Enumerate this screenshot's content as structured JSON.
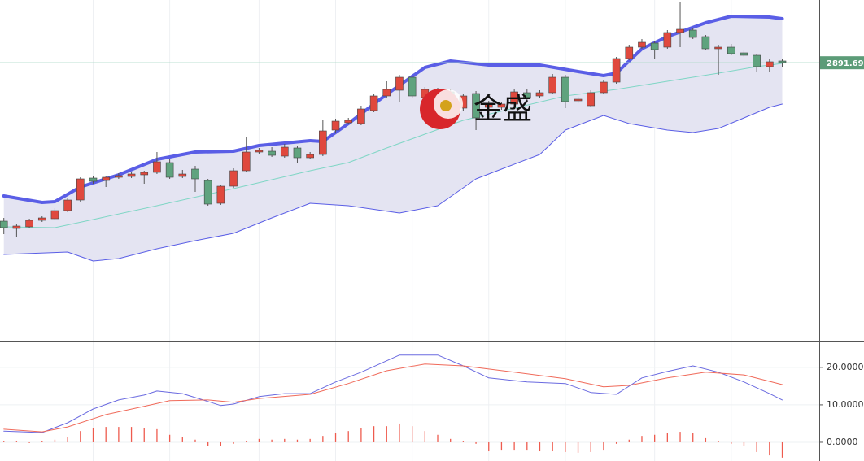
{
  "chart_data": [
    {
      "type": "candlestick",
      "xlim": [
        -0.3,
        63.9
      ],
      "ylim": [
        2686,
        2938
      ],
      "xticks": [
        7,
        13,
        20,
        26,
        32,
        38,
        44,
        51,
        57
      ],
      "up_color": "#e0493e",
      "down_color": "#5fa37e",
      "last_price": 2891.69,
      "last_price_color": "#5c9c78",
      "watermark": "金盛",
      "open": [
        2774.8,
        2769.4,
        2770.6,
        2775.4,
        2776.6,
        2782.6,
        2790.4,
        2806.6,
        2804.8,
        2807.2,
        2807.8,
        2809,
        2810.8,
        2818,
        2807.8,
        2813.2,
        2804.8,
        2788,
        2800.6,
        2812,
        2825.8,
        2826.4,
        2822.8,
        2828.8,
        2821.6,
        2824,
        2842,
        2847.4,
        2846.8,
        2856.4,
        2867.2,
        2871.4,
        2881,
        2866,
        2870.8,
        2870.2,
        2858.2,
        2869,
        2858.8,
        2858.8,
        2861.2,
        2869.6,
        2867.2,
        2869.6,
        2881,
        2863.6,
        2860,
        2869.6,
        2877.4,
        2894.8,
        2903.2,
        2906.2,
        2903.2,
        2914,
        2915.8,
        2911,
        2902,
        2903.2,
        2899,
        2897.2,
        2888.8,
        2893
      ],
      "high": [
        2777.2,
        2773,
        2776.6,
        2778.4,
        2784.4,
        2791.6,
        2807.2,
        2808.4,
        2808.4,
        2810.2,
        2811.4,
        2812,
        2825.8,
        2820.4,
        2812.6,
        2815.6,
        2806,
        2801.8,
        2813.8,
        2837.2,
        2828.8,
        2829.4,
        2831.8,
        2830.6,
        2825.8,
        2849.8,
        2850.4,
        2851,
        2860,
        2869,
        2878,
        2882.8,
        2882.2,
        2873.8,
        2873.2,
        2872,
        2869,
        2870.8,
        2863.6,
        2863,
        2872,
        2872,
        2871.4,
        2883.4,
        2882.8,
        2866.6,
        2871.4,
        2879.2,
        2896,
        2905,
        2909.2,
        2908,
        2915.8,
        2936.8,
        2917.6,
        2912.2,
        2905,
        2905.6,
        2900.8,
        2898.4,
        2894.2,
        2894.8
      ],
      "low": [
        2765.2,
        2762.8,
        2769.4,
        2774.2,
        2775.4,
        2781.4,
        2789.2,
        2802.4,
        2800,
        2806,
        2806.6,
        2802.4,
        2809.6,
        2806,
        2806.6,
        2796.4,
        2786.2,
        2786.8,
        2799.4,
        2810.8,
        2824.6,
        2822.2,
        2821.6,
        2818,
        2820.4,
        2822.8,
        2840.2,
        2846.2,
        2845.6,
        2855.2,
        2866,
        2862.4,
        2866,
        2864.8,
        2857.6,
        2859.4,
        2856.4,
        2842,
        2857,
        2857,
        2859.4,
        2863.6,
        2865.4,
        2868.4,
        2858.2,
        2861.8,
        2858.8,
        2868.4,
        2876.2,
        2893.6,
        2902,
        2894.8,
        2902,
        2903.2,
        2909.2,
        2900.8,
        2882.8,
        2897.2,
        2896,
        2885.2,
        2885.2,
        2888.8
      ],
      "close": [
        2770,
        2771.2,
        2775.4,
        2777.2,
        2782.6,
        2790.4,
        2806,
        2804.2,
        2807.2,
        2808.4,
        2809.6,
        2810.8,
        2818.6,
        2807.2,
        2809.6,
        2806,
        2787.4,
        2800.6,
        2812,
        2825.8,
        2827,
        2823.4,
        2829.4,
        2821.6,
        2824,
        2841.4,
        2848.6,
        2849.2,
        2857.6,
        2867.2,
        2872,
        2881,
        2867.2,
        2872,
        2859.4,
        2861.2,
        2867.2,
        2851,
        2861.8,
        2861.2,
        2870.2,
        2865.4,
        2869.6,
        2881,
        2863,
        2864.8,
        2869.6,
        2877.4,
        2894.8,
        2903.2,
        2906.8,
        2901.4,
        2914,
        2916.4,
        2910.4,
        2902,
        2903.2,
        2898.4,
        2897.2,
        2888.8,
        2892.4,
        2891.8
      ],
      "bands": [
        {
          "color": "#5a5ee6",
          "width": 4,
          "x": [
            0,
            3,
            4,
            6,
            9,
            12,
            15,
            18,
            20,
            22,
            24,
            25,
            27,
            30,
            33,
            35,
            38,
            42,
            45,
            47,
            48,
            50,
            52,
            55,
            57,
            60,
            61
          ],
          "values": [
            2793.4,
            2788.6,
            2789.2,
            2800,
            2809,
            2820.4,
            2825.8,
            2826.4,
            2830.6,
            2832.4,
            2834.2,
            2833.6,
            2846.8,
            2868.4,
            2888.2,
            2893,
            2890,
            2890,
            2885.2,
            2882.2,
            2884,
            2902,
            2911,
            2921.2,
            2926,
            2925.4,
            2924.2
          ]
        },
        {
          "color": "#7fd6c5",
          "width": 1,
          "x": [
            0,
            4,
            7,
            12,
            18,
            24,
            27,
            30,
            33,
            36,
            40,
            44,
            48,
            52,
            56,
            59,
            61
          ],
          "values": [
            2770.6,
            2770,
            2776,
            2786.2,
            2798.8,
            2812,
            2818,
            2828.8,
            2839,
            2849.2,
            2858.2,
            2867.2,
            2872,
            2878,
            2884,
            2888.8,
            2891.2
          ]
        },
        {
          "color": "#5a5ee6",
          "width": 1,
          "x": [
            0,
            5,
            7,
            9,
            12,
            15,
            18,
            21,
            24,
            27,
            31,
            34,
            37,
            39,
            42,
            44,
            46,
            47,
            49,
            52,
            54,
            56,
            58,
            60,
            61
          ],
          "values": [
            2750.2,
            2752,
            2745.4,
            2747.2,
            2754.4,
            2760.4,
            2765.8,
            2777.2,
            2788,
            2786.2,
            2780.8,
            2786.2,
            2806,
            2813.2,
            2824,
            2842,
            2849.2,
            2852.8,
            2846.8,
            2842,
            2840.2,
            2843.2,
            2851,
            2858.8,
            2861.2
          ]
        }
      ],
      "band_fill": "#e4e4f2"
    },
    {
      "type": "macd",
      "xlim": [
        -0.3,
        63.9
      ],
      "ylim": [
        -5,
        26.7
      ],
      "xticks": [
        7,
        13,
        20,
        26,
        32,
        38,
        44,
        51,
        57
      ],
      "yticks": [
        {
          "value": 0,
          "label": "0.0000"
        },
        {
          "value": 10,
          "label": "10.0000"
        },
        {
          "value": 20,
          "label": "20.0000"
        }
      ],
      "series": [
        {
          "color": "#6a6ae0",
          "x": [
            0,
            3,
            5,
            7,
            9,
            11,
            12,
            14,
            16,
            17,
            18,
            20,
            22,
            24,
            26,
            28,
            31,
            34,
            36,
            38,
            41,
            44,
            46,
            48,
            50,
            52,
            54,
            56,
            58,
            60,
            61
          ],
          "values": [
            3,
            2.6,
            5.2,
            8.9,
            11.3,
            12.6,
            13.7,
            13,
            10.9,
            9.8,
            10.2,
            12.2,
            13,
            13,
            16.1,
            18.7,
            23.3,
            23.3,
            20.4,
            17.2,
            16.1,
            15.7,
            13.3,
            12.8,
            17.2,
            18.9,
            20.4,
            18.7,
            16.1,
            13,
            11.3
          ]
        },
        {
          "color": "#f06a5a",
          "x": [
            0,
            3,
            5,
            8,
            11,
            13,
            16,
            18,
            20,
            24,
            27,
            30,
            33,
            36,
            40,
            44,
            47,
            49,
            52,
            55,
            58,
            61
          ],
          "values": [
            3.5,
            2.8,
            4.1,
            7.4,
            9.6,
            11.1,
            11.3,
            10.7,
            11.7,
            12.8,
            15.7,
            19.1,
            20.9,
            20.4,
            18.7,
            17,
            14.8,
            15.2,
            17.2,
            18.7,
            18,
            15.4
          ]
        }
      ],
      "histogram_color": "#ee5b4e",
      "histogram": [
        0.2,
        0.2,
        -0.2,
        0.3,
        0.7,
        1.3,
        3,
        3.7,
        4.1,
        4.1,
        4.1,
        3.9,
        3.5,
        2,
        1.3,
        0.7,
        -0.9,
        -0.9,
        -0.4,
        0.2,
        0.9,
        0.7,
        0.9,
        0.7,
        0.9,
        1.7,
        2.4,
        3,
        3.7,
        4.3,
        4.3,
        5,
        4.3,
        3,
        2,
        0.9,
        0.2,
        -0.4,
        -2.4,
        -2.2,
        -2.2,
        -2.2,
        -2.4,
        -2.4,
        -2.6,
        -2.8,
        -2.6,
        -2.2,
        -0.4,
        0.7,
        1.7,
        2,
        2.4,
        2.8,
        2.4,
        1.1,
        0.2,
        -0.4,
        -1.1,
        -2.6,
        -3.5,
        -4.1
      ],
      "grid": true
    }
  ]
}
